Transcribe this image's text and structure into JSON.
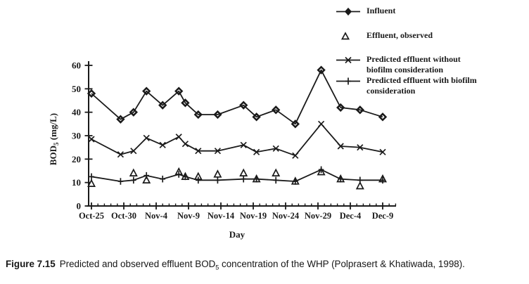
{
  "figure": {
    "caption_label": "Figure 7.15",
    "caption_before_sub": "Predicted and observed effluent BOD",
    "caption_sub": "5",
    "caption_after_sub": " concentration of the WHP (Polprasert & Khatiwada, 1998)."
  },
  "legend": {
    "items": [
      {
        "icon": "diamond-line-swatch",
        "lines": [
          "Influent",
          ""
        ]
      },
      {
        "icon": "triangle-open-swatch",
        "lines": [
          "Effluent, observed",
          ""
        ]
      },
      {
        "icon": "x-line-swatch",
        "lines": [
          "Predicted effluent without",
          "biofilm consideration"
        ]
      },
      {
        "icon": "plus-line-swatch",
        "lines": [
          "Predicted effluent with biofilm",
          "consideration"
        ]
      }
    ]
  },
  "chart_data": {
    "type": "line",
    "title": "",
    "xlabel": "Day",
    "ylabel": "BOD5 (mg/L)",
    "ylabel_parts": {
      "main": "BOD",
      "sub": "5",
      "unit": " (mg/L)"
    },
    "ylim": [
      0,
      60
    ],
    "y_ticks": [
      0,
      10,
      20,
      30,
      40,
      50,
      60
    ],
    "x_tick_labels": [
      "Oct-25",
      "Oct-30",
      "Nov-4",
      "Nov-9",
      "Nov-14",
      "Nov-19",
      "Nov-24",
      "Nov-29",
      "Dec-4",
      "Dec-9"
    ],
    "x_tick_days": [
      0,
      5,
      10,
      15,
      20,
      25,
      30,
      35,
      40,
      45
    ],
    "x_minor_tick_step_days": 1,
    "x_axis_day_range": [
      0,
      47
    ],
    "grid": false,
    "legend_position": "top-right",
    "ink_color": "#1a1a1a",
    "series": [
      {
        "name": "Influent",
        "marker": "diamond",
        "line": true,
        "days": [
          0,
          4.5,
          6.5,
          8.5,
          11,
          13.5,
          14.5,
          16.5,
          19.5,
          23.5,
          25.5,
          28.5,
          31.5,
          35.5,
          38.5,
          41.5,
          45
        ],
        "values": [
          48,
          37,
          40,
          49,
          43,
          49,
          44,
          39,
          39,
          43,
          38,
          41,
          35,
          58,
          42,
          41,
          38
        ]
      },
      {
        "name": "Effluent, observed",
        "marker": "triangle-open",
        "line": false,
        "days": [
          0,
          6.5,
          8.5,
          13.5,
          14.5,
          16.5,
          19.5,
          23.5,
          25.5,
          28.5,
          31.5,
          35.5,
          38.5,
          41.5,
          45
        ],
        "values": [
          9.5,
          14,
          11,
          14.5,
          12.5,
          12.5,
          13.5,
          14,
          11.5,
          14,
          10.5,
          14.5,
          11.5,
          8.5,
          11.5
        ]
      },
      {
        "name": "Predicted effluent without biofilm consideration",
        "marker": "x",
        "line": true,
        "days": [
          0,
          4.5,
          6.5,
          8.5,
          11,
          13.5,
          14.5,
          16.5,
          19.5,
          23.5,
          25.5,
          28.5,
          31.5,
          35.5,
          38.5,
          41.5,
          45
        ],
        "values": [
          28.5,
          22,
          23.5,
          29,
          26,
          29.5,
          26.5,
          23.5,
          23.5,
          26,
          23,
          24.5,
          21.5,
          35,
          25.5,
          25,
          23
        ]
      },
      {
        "name": "Predicted effluent with biofilm consideration",
        "marker": "plus",
        "line": true,
        "days": [
          0,
          4.5,
          6.5,
          8.5,
          11,
          13.5,
          14.5,
          16.5,
          19.5,
          23.5,
          25.5,
          28.5,
          31.5,
          35.5,
          38.5,
          41.5,
          45
        ],
        "values": [
          12.5,
          10.5,
          11,
          13,
          11.5,
          13.5,
          12.5,
          11,
          11,
          11.5,
          11.5,
          11,
          10.5,
          15.5,
          11.5,
          11,
          11
        ]
      }
    ]
  }
}
